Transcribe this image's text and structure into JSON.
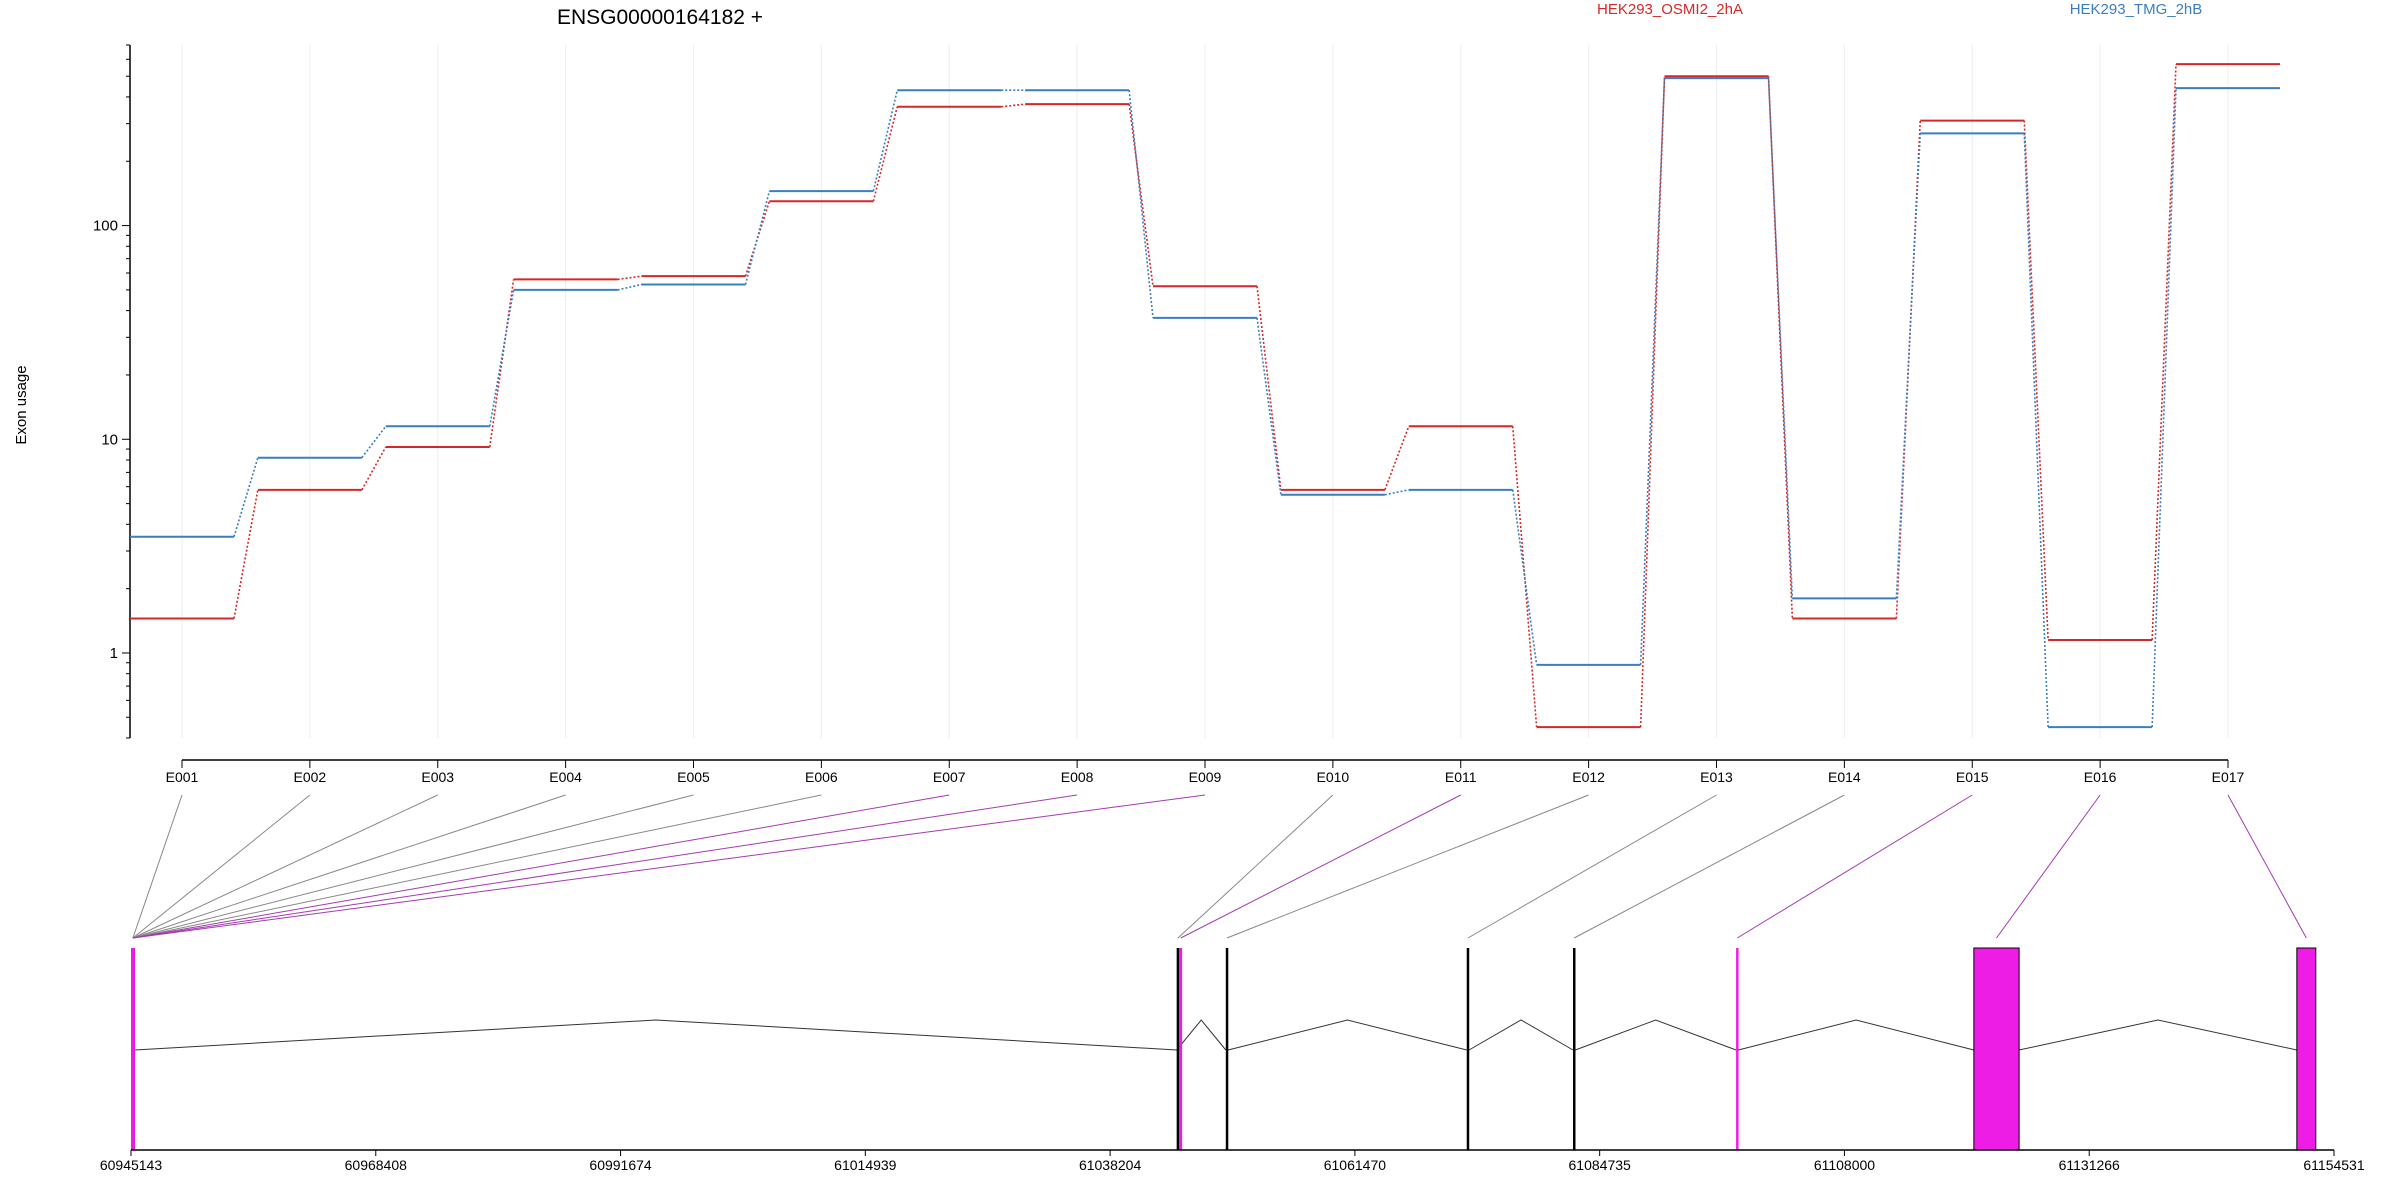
{
  "chart_data": {
    "type": "line",
    "title": "ENSG00000164182 +",
    "ylabel": "Exon usage",
    "xlabel": "",
    "y_scale": "log",
    "ylim": [
      0.4,
      700
    ],
    "y_ticks": [
      "1",
      "10",
      "100"
    ],
    "grid": "vertical",
    "legend_placement": "top",
    "categories": [
      "E001",
      "E002",
      "E003",
      "E004",
      "E005",
      "E006",
      "E007",
      "E008",
      "E009",
      "E010",
      "E011",
      "E012",
      "E013",
      "E014",
      "E015",
      "E016",
      "E017"
    ],
    "series": [
      {
        "name": "HEK293_OSMI2_2hA",
        "color": "#d62728",
        "values": [
          1.45,
          5.8,
          9.2,
          56,
          58,
          130,
          360,
          370,
          52,
          5.8,
          11.5,
          0.45,
          500,
          1.45,
          310,
          1.15,
          570
        ]
      },
      {
        "name": "HEK293_TMG_2hB",
        "color": "#3a7ebf",
        "values": [
          3.5,
          8.2,
          11.5,
          50,
          53,
          145,
          430,
          430,
          37,
          5.5,
          5.8,
          0.88,
          490,
          1.8,
          270,
          0.45,
          440
        ]
      }
    ],
    "gene_model": {
      "coordinate_ticks": [
        "60945143",
        "60968408",
        "60991674",
        "61014939",
        "61038204",
        "61061470",
        "61084735",
        "61108000",
        "61131266",
        "61154531"
      ],
      "highlight_color": "#ee1de6",
      "exons": [
        {
          "id": "E001",
          "start": 60945143,
          "end": 60945500,
          "highlighted": false
        },
        {
          "id": "E002",
          "start": 60945143,
          "end": 60945500,
          "highlighted": false
        },
        {
          "id": "E003",
          "start": 60945143,
          "end": 60945500,
          "highlighted": false
        },
        {
          "id": "E004",
          "start": 60945143,
          "end": 60945500,
          "highlighted": false
        },
        {
          "id": "E005",
          "start": 60945143,
          "end": 60945500,
          "highlighted": false
        },
        {
          "id": "E006",
          "start": 60945143,
          "end": 60945500,
          "highlighted": false
        },
        {
          "id": "E007",
          "start": 60945143,
          "end": 60945500,
          "highlighted": true
        },
        {
          "id": "E008",
          "start": 60945143,
          "end": 60945500,
          "highlighted": true
        },
        {
          "id": "E009",
          "start": 60945143,
          "end": 60945500,
          "highlighted": true
        },
        {
          "id": "E010",
          "start": 61044530,
          "end": 61044780,
          "highlighted": false
        },
        {
          "id": "E011",
          "start": 61044780,
          "end": 61045050,
          "highlighted": true
        },
        {
          "id": "E012",
          "start": 61049200,
          "end": 61049420,
          "highlighted": false
        },
        {
          "id": "E013",
          "start": 61072100,
          "end": 61072320,
          "highlighted": false
        },
        {
          "id": "E014",
          "start": 61082200,
          "end": 61082420,
          "highlighted": false
        },
        {
          "id": "E015",
          "start": 61097700,
          "end": 61097920,
          "highlighted": true
        },
        {
          "id": "E016",
          "start": 61120300,
          "end": 61124600,
          "highlighted": true
        },
        {
          "id": "E017",
          "start": 61151000,
          "end": 61152800,
          "highlighted": true
        }
      ],
      "intron_arcs": [
        [
          60945500,
          61044530
        ],
        [
          61044530,
          61049200
        ],
        [
          61049420,
          61072100
        ],
        [
          61072320,
          61082200
        ],
        [
          61082420,
          61097700
        ],
        [
          61097920,
          61120300
        ],
        [
          61124600,
          61151000
        ]
      ]
    }
  }
}
